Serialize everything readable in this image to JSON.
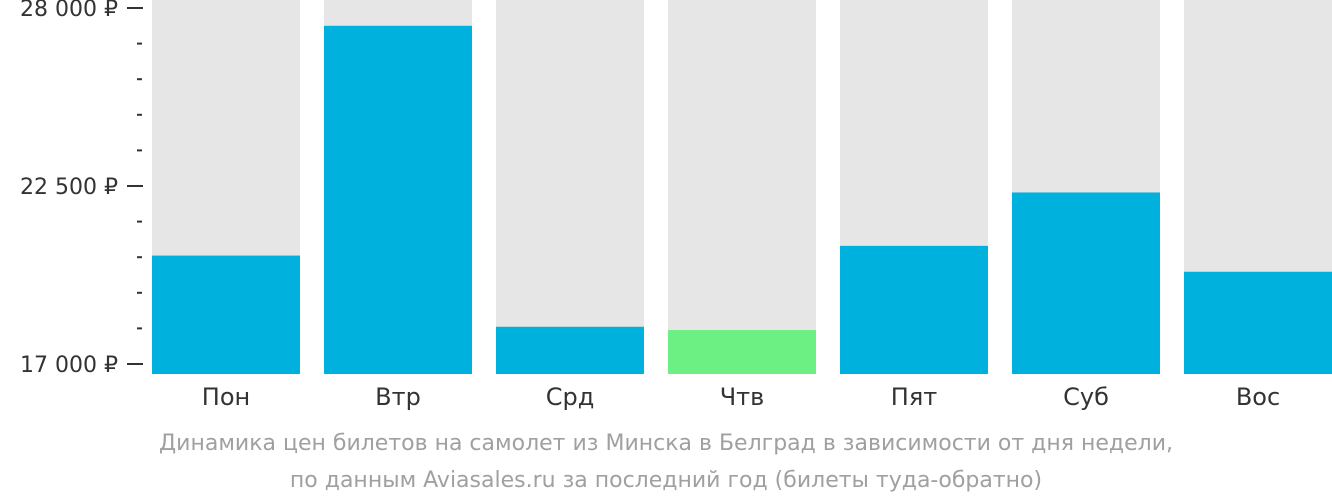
{
  "colors": {
    "bar": "#00b0dd",
    "highlight": "#6cef83",
    "background_bar": "#e6e6e6",
    "axis": "#333333",
    "caption": "#a0a0a0"
  },
  "caption": {
    "line1": "Динамика цен билетов на самолет из Минска в Белград в зависимости от дня недели,",
    "line2": "по данным Aviasales.ru за последний год (билеты туда-обратно)"
  },
  "chart_data": {
    "type": "bar",
    "categories": [
      "Пон",
      "Втр",
      "Срд",
      "Чтв",
      "Пят",
      "Суб",
      "Вос"
    ],
    "values": [
      20350,
      27450,
      18150,
      18050,
      20650,
      22300,
      19850
    ],
    "highlight_index": 3,
    "ylim": [
      17000,
      28000
    ],
    "yticks": [
      {
        "value": 28000,
        "label": "28 000 ₽"
      },
      {
        "value": 22500,
        "label": "22 500 ₽"
      },
      {
        "value": 17000,
        "label": "17 000 ₽"
      }
    ],
    "minor_tick_step": 1100,
    "grid": false
  }
}
